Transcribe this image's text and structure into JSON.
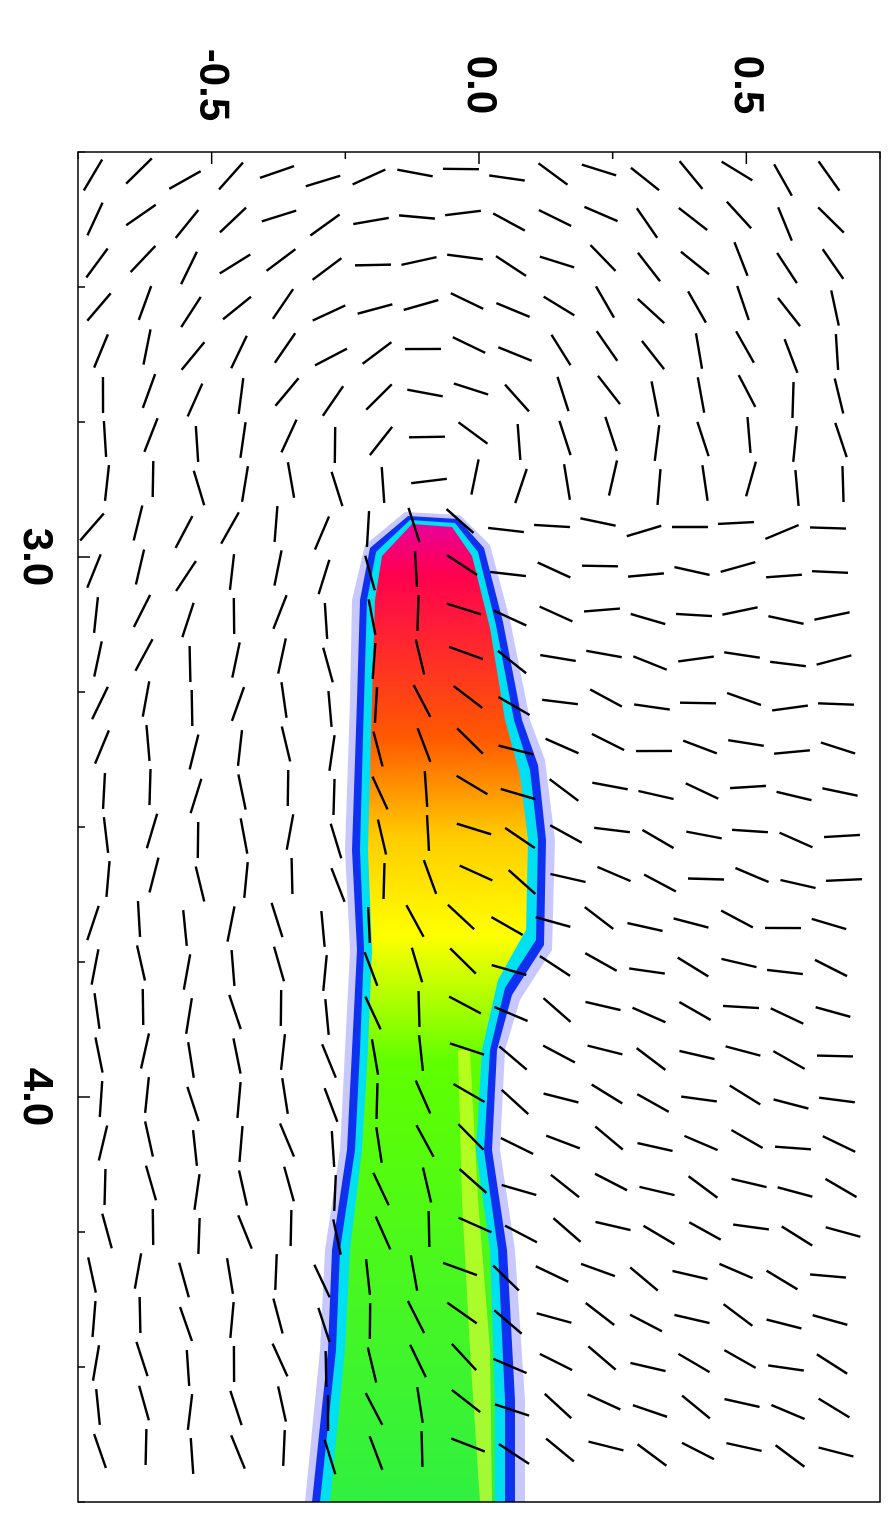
{
  "chart_data": {
    "type": "vector-field-map",
    "xlim": [
      -0.75,
      0.75
    ],
    "xticks": [
      {
        "value": -0.5,
        "label": "-0.5"
      },
      {
        "value": 0,
        "label": "0.0"
      },
      {
        "value": 0.5,
        "label": "0.5"
      }
    ],
    "xminorticks": [
      -0.75,
      -0.25,
      0.25,
      0.75
    ],
    "ylim": [
      2.25,
      4.75
    ],
    "yticks": [
      {
        "value": 3,
        "label": "3.0"
      },
      {
        "value": 4,
        "label": "4.0"
      }
    ],
    "yminorticks": [
      2.25,
      2.5,
      2.75,
      3.25,
      3.5,
      3.75,
      4.25,
      4.5,
      4.75
    ]
  }
}
